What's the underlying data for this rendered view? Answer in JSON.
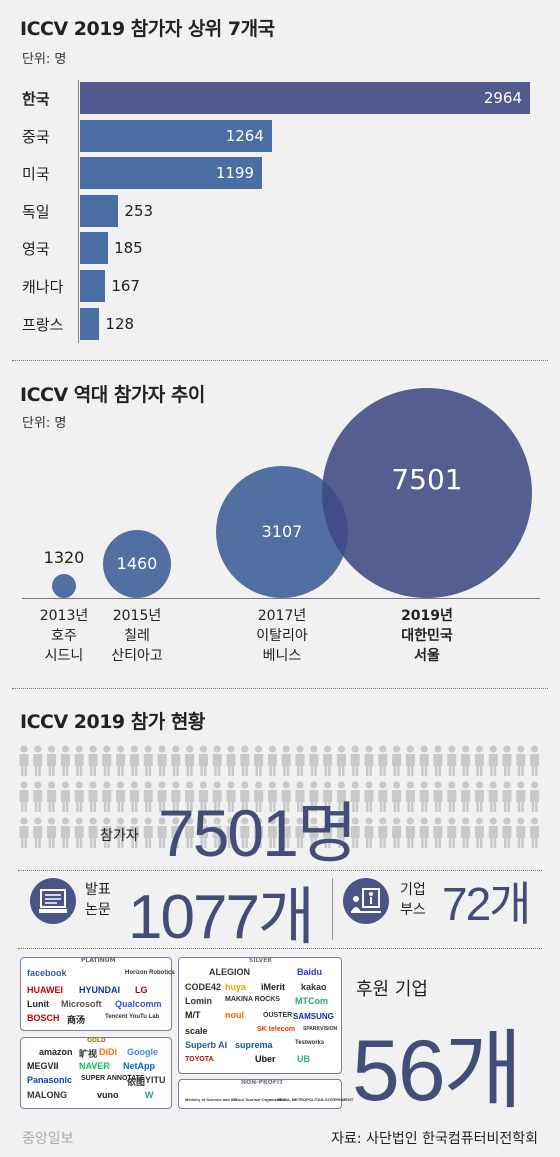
{
  "chart_data": [
    {
      "type": "bar",
      "title": "ICCV 2019 참가자 상위 7개국",
      "unit_label": "단위: 명",
      "categories": [
        "한국",
        "중국",
        "미국",
        "독일",
        "영국",
        "캐나다",
        "프랑스"
      ],
      "values": [
        2964,
        1264,
        1199,
        253,
        185,
        167,
        128
      ]
    },
    {
      "type": "scatter",
      "title": "ICCV 역대 참가자 추이",
      "unit_label": "단위: 명",
      "categories": [
        "2013년 호주 시드니",
        "2015년 칠레 산티아고",
        "2017년 이탈리아 베니스",
        "2019년 대한민국 서울"
      ],
      "values": [
        1320,
        1460,
        3107,
        7501
      ]
    }
  ],
  "timeline": [
    {
      "year": "2013년",
      "country": "호주",
      "city": "시드니",
      "value": "1320"
    },
    {
      "year": "2015년",
      "country": "칠레",
      "city": "산티아고",
      "value": "1460"
    },
    {
      "year": "2017년",
      "country": "이탈리아",
      "city": "베니스",
      "value": "3107"
    },
    {
      "year": "2019년",
      "country": "대한민국",
      "city": "서울",
      "value": "7501"
    }
  ],
  "section3": {
    "title": "ICCV 2019 참가 현황",
    "participants_label": "참가자",
    "participants_value": "7501명",
    "papers_label_1": "발표",
    "papers_label_2": "논문",
    "papers_value": "1077개",
    "booth_label_1": "기업",
    "booth_label_2": "부스",
    "booth_value": "72개",
    "sponsor_label": "후원 기업",
    "sponsor_value": "56개"
  },
  "logos": {
    "platinum_label": "PLATINUM",
    "gold_label": "GOLD",
    "silver_label": "SILVER",
    "nonprofit_label": "NON-PROFIT",
    "platinum": [
      "facebook",
      "Horizon Robotics",
      "HUAWEI",
      "HYUNDAI",
      "LG",
      "Lunit",
      "Microsoft",
      "Qualcomm",
      "BOSCH",
      "商汤",
      "Tencent YouTu Lab"
    ],
    "gold": [
      "amazon",
      "旷视",
      "DiDi",
      "Google",
      "MEGVII",
      "NAVER",
      "NetApp",
      "Panasonic",
      "SUPER ANNOTATE",
      "依图",
      "YITU",
      "MALONG",
      "vuno",
      "W"
    ],
    "silver": [
      "ALEGION",
      "Baidu",
      "CODE42",
      "huya",
      "iMerit",
      "kakao",
      "Lomin",
      "MAKINA ROCKS",
      "MTCom",
      "M/T",
      "noul",
      "OUSTER",
      "SAMSUNG",
      "scale",
      "SK telecom",
      "SPARKVISION",
      "Superb AI",
      "suprema",
      "Testworks",
      "TOYOTA",
      "Uber",
      "UB"
    ],
    "nonprofit": [
      "Ministry of Science and ICT",
      "Seoul Tourism Organization",
      "SEOUL METROPOLITAN GOVERNMENT"
    ]
  },
  "footer": {
    "brand": "중앙일보",
    "source": "자료: 사단법인 한국컴퓨터비전학회"
  },
  "colors": {
    "bar": "#4a6ea3",
    "bar_top": "#525a8f",
    "bubble": "#4a5488",
    "accent": "#444c78"
  }
}
